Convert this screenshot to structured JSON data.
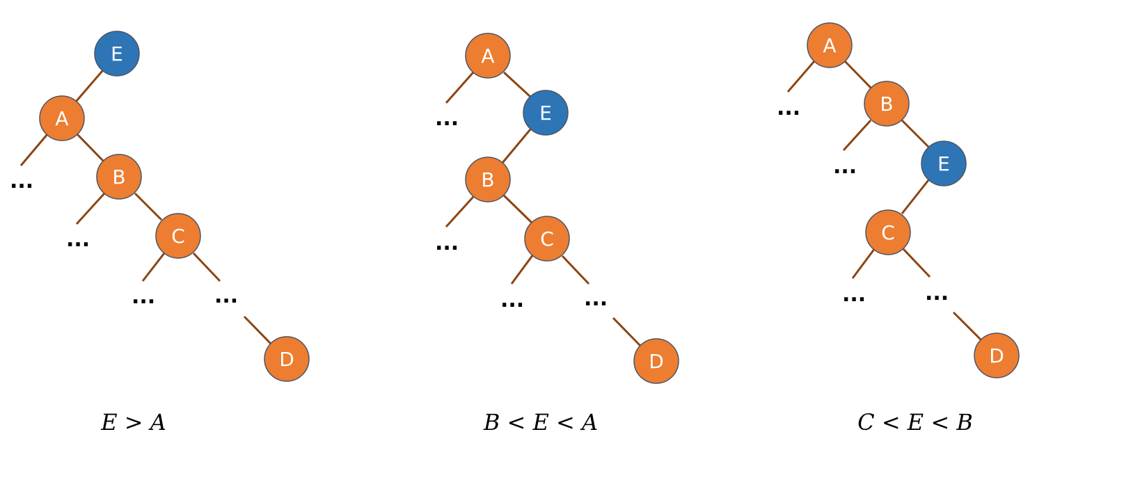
{
  "colors": {
    "orange": "#ED7D31",
    "blue": "#2E75B6",
    "edge": "#8B4513"
  },
  "diagrams": [
    {
      "id": "diagram-1",
      "caption": "E > A",
      "nodes": [
        {
          "id": "E",
          "label": "E",
          "color": "blue"
        },
        {
          "id": "A",
          "label": "A",
          "color": "orange"
        },
        {
          "id": "B",
          "label": "B",
          "color": "orange"
        },
        {
          "id": "C",
          "label": "C",
          "color": "orange"
        },
        {
          "id": "D",
          "label": "D",
          "color": "orange"
        }
      ],
      "ellipses": [
        "...",
        "...",
        "...",
        "..."
      ]
    },
    {
      "id": "diagram-2",
      "caption": "B < E < A",
      "nodes": [
        {
          "id": "A",
          "label": "A",
          "color": "orange"
        },
        {
          "id": "E",
          "label": "E",
          "color": "blue"
        },
        {
          "id": "B",
          "label": "B",
          "color": "orange"
        },
        {
          "id": "C",
          "label": "C",
          "color": "orange"
        },
        {
          "id": "D",
          "label": "D",
          "color": "orange"
        }
      ],
      "ellipses": [
        "...",
        "...",
        "...",
        "..."
      ]
    },
    {
      "id": "diagram-3",
      "caption": "C < E < B",
      "nodes": [
        {
          "id": "A",
          "label": "A",
          "color": "orange"
        },
        {
          "id": "B",
          "label": "B",
          "color": "orange"
        },
        {
          "id": "E",
          "label": "E",
          "color": "blue"
        },
        {
          "id": "C",
          "label": "C",
          "color": "orange"
        },
        {
          "id": "D",
          "label": "D",
          "color": "orange"
        }
      ],
      "ellipses": [
        "...",
        "...",
        "...",
        "..."
      ]
    }
  ]
}
